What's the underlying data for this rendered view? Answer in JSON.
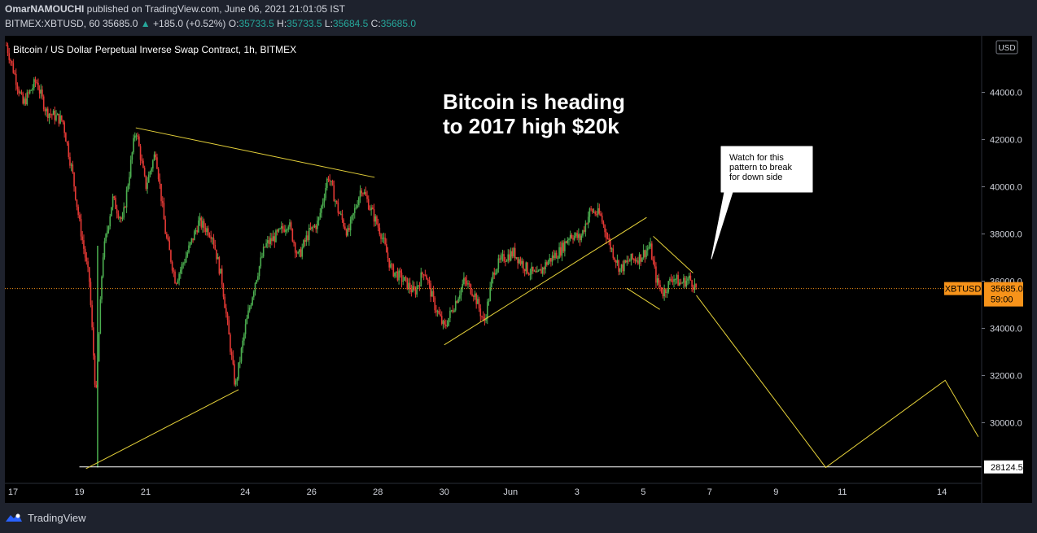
{
  "header": {
    "author": "OmarNAMOUCHI",
    "published": " published on TradingView.com, June 06, 2021 21:01:05 IST",
    "symbol": "BITMEX:XBTUSD, 60",
    "last": "35685.0",
    "change": "+185.0 (+0.52%)",
    "o_label": "O:",
    "o": "35733.5",
    "h_label": "H:",
    "h": "35733.5",
    "l_label": "L:",
    "l": "35684.5",
    "c_label": "C:",
    "c": "35685.0"
  },
  "chart_data": {
    "type": "candlestick",
    "title": "Bitcoin / US Dollar Perpetual Inverse Swap Contract, 1h, BITMEX",
    "annotation": [
      "Bitcoin is heading",
      "to 2017 high $20k"
    ],
    "callout": [
      "Watch for this",
      "pattern to break",
      "for down side"
    ],
    "currency": "USD",
    "ylim": [
      26600,
      46400
    ],
    "y_ticks": [
      30000,
      32000,
      34000,
      36000,
      38000,
      40000,
      42000,
      44000
    ],
    "y_tick_labels": [
      "30000.0",
      "32000.0",
      "34000.0",
      "36000.0",
      "38000.0",
      "40000.0",
      "42000.0",
      "44000.0"
    ],
    "x_ticks": [
      {
        "label": "17",
        "day": 17
      },
      {
        "label": "19",
        "day": 19
      },
      {
        "label": "21",
        "day": 21
      },
      {
        "label": "24",
        "day": 24
      },
      {
        "label": "26",
        "day": 26
      },
      {
        "label": "28",
        "day": 28
      },
      {
        "label": "30",
        "day": 30
      },
      {
        "label": "Jun",
        "day": 32
      },
      {
        "label": "3",
        "day": 34
      },
      {
        "label": "5",
        "day": 36
      },
      {
        "label": "7",
        "day": 38
      },
      {
        "label": "9",
        "day": 40
      },
      {
        "label": "11",
        "day": 42
      },
      {
        "label": "14",
        "day": 45
      }
    ],
    "price_path": [
      [
        16.8,
        46000
      ],
      [
        17.3,
        43500
      ],
      [
        17.7,
        44500
      ],
      [
        18.0,
        43200
      ],
      [
        18.5,
        42800
      ],
      [
        18.8,
        40500
      ],
      [
        19.0,
        38500
      ],
      [
        19.3,
        36000
      ],
      [
        19.5,
        31000
      ],
      [
        19.7,
        37000
      ],
      [
        20.0,
        39500
      ],
      [
        20.3,
        38500
      ],
      [
        20.7,
        42500
      ],
      [
        21.0,
        40000
      ],
      [
        21.3,
        41500
      ],
      [
        21.6,
        38000
      ],
      [
        21.9,
        36000
      ],
      [
        22.2,
        37000
      ],
      [
        22.6,
        38500
      ],
      [
        23.0,
        38000
      ],
      [
        23.3,
        36000
      ],
      [
        23.7,
        31500
      ],
      [
        24.0,
        34000
      ],
      [
        24.3,
        36000
      ],
      [
        24.6,
        37500
      ],
      [
        25.0,
        38000
      ],
      [
        25.3,
        38500
      ],
      [
        25.6,
        37000
      ],
      [
        25.9,
        38000
      ],
      [
        26.2,
        38500
      ],
      [
        26.5,
        40500
      ],
      [
        26.8,
        39000
      ],
      [
        27.1,
        38000
      ],
      [
        27.5,
        40000
      ],
      [
        27.8,
        39000
      ],
      [
        28.1,
        38000
      ],
      [
        28.4,
        36500
      ],
      [
        28.8,
        36000
      ],
      [
        29.1,
        35500
      ],
      [
        29.4,
        36500
      ],
      [
        29.7,
        35000
      ],
      [
        30.0,
        34000
      ],
      [
        30.3,
        35000
      ],
      [
        30.6,
        36000
      ],
      [
        30.9,
        35500
      ],
      [
        31.2,
        34200
      ],
      [
        31.5,
        36500
      ],
      [
        31.8,
        37000
      ],
      [
        32.1,
        37200
      ],
      [
        32.5,
        36500
      ],
      [
        32.8,
        36200
      ],
      [
        33.1,
        36800
      ],
      [
        33.5,
        37300
      ],
      [
        33.8,
        38000
      ],
      [
        34.1,
        37800
      ],
      [
        34.4,
        39000
      ],
      [
        34.7,
        38800
      ],
      [
        35.0,
        37500
      ],
      [
        35.3,
        36500
      ],
      [
        35.6,
        36900
      ],
      [
        35.9,
        37000
      ],
      [
        36.2,
        37500
      ],
      [
        36.4,
        36000
      ],
      [
        36.6,
        35500
      ],
      [
        36.9,
        36200
      ],
      [
        37.1,
        35900
      ],
      [
        37.4,
        36100
      ],
      [
        37.6,
        35685
      ]
    ],
    "trendlines": [
      {
        "from": [
          19.2,
          28050
        ],
        "to": [
          23.8,
          31400
        ]
      },
      {
        "from": [
          20.7,
          42500
        ],
        "to": [
          27.9,
          40400
        ]
      },
      {
        "from": [
          30.0,
          33300
        ],
        "to": [
          36.1,
          38700
        ]
      },
      {
        "from": [
          35.5,
          35700
        ],
        "to": [
          36.5,
          34800
        ]
      },
      {
        "from": [
          36.3,
          37900
        ],
        "to": [
          37.5,
          36350
        ]
      }
    ],
    "projection": [
      [
        37.6,
        35400
      ],
      [
        41.5,
        28100
      ],
      [
        45.1,
        31800
      ],
      [
        46.1,
        29400
      ]
    ],
    "support_line": {
      "value": 28124.5,
      "label": "28124.5"
    },
    "current_price": {
      "symbol": "XBTUSD",
      "value": 35685.0,
      "label": "35685.0",
      "countdown": "59:00"
    }
  },
  "footer": {
    "brand": "TradingView"
  }
}
